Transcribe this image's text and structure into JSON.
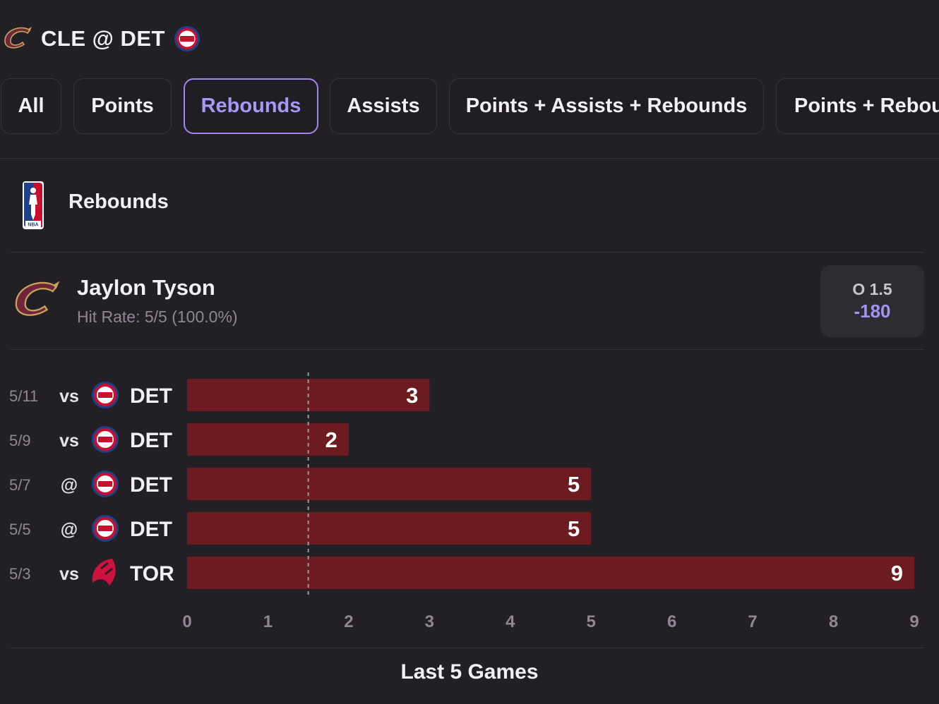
{
  "header": {
    "title": "CLE @ DET",
    "away_team_icon": "cavaliers-logo",
    "home_team_icon": "pistons-logo"
  },
  "tabs": [
    {
      "label": "All",
      "active": false
    },
    {
      "label": "Points",
      "active": false
    },
    {
      "label": "Rebounds",
      "active": true
    },
    {
      "label": "Assists",
      "active": false
    },
    {
      "label": "Points + Assists + Rebounds",
      "active": false
    },
    {
      "label": "Points + Rebounds",
      "active": false
    }
  ],
  "section": {
    "title": "Rebounds",
    "league_icon": "nba-logo"
  },
  "player": {
    "name": "Jaylon Tyson",
    "hit_rate": "Hit Rate: 5/5 (100.0%)",
    "team_icon": "cavaliers-logo"
  },
  "odds": {
    "line": "O 1.5",
    "price": "-180"
  },
  "colors": {
    "background": "#232025",
    "bar": "#6c1b20",
    "accent": "#a493f3",
    "cavs_wine": "#6f263d",
    "cavs_gold": "#c8a45a"
  },
  "chart_data": {
    "type": "bar",
    "orientation": "horizontal",
    "categories": [
      "5/11",
      "5/9",
      "5/7",
      "5/5",
      "5/3"
    ],
    "games": [
      {
        "date": "5/11",
        "loc": "vs",
        "opp": "DET",
        "opp_icon": "pistons-logo"
      },
      {
        "date": "5/9",
        "loc": "vs",
        "opp": "DET",
        "opp_icon": "pistons-logo"
      },
      {
        "date": "5/7",
        "loc": "@",
        "opp": "DET",
        "opp_icon": "pistons-logo"
      },
      {
        "date": "5/5",
        "loc": "@",
        "opp": "DET",
        "opp_icon": "pistons-logo"
      },
      {
        "date": "5/3",
        "loc": "vs",
        "opp": "TOR",
        "opp_icon": "raptors-logo"
      }
    ],
    "values": [
      3,
      2,
      5,
      5,
      9
    ],
    "threshold": 1.5,
    "xlim": [
      0,
      9
    ],
    "x_ticks": [
      "0",
      "1",
      "2",
      "3",
      "4",
      "5",
      "6",
      "7",
      "8",
      "9"
    ],
    "xlabel": "Last 5 Games",
    "grid": false
  }
}
